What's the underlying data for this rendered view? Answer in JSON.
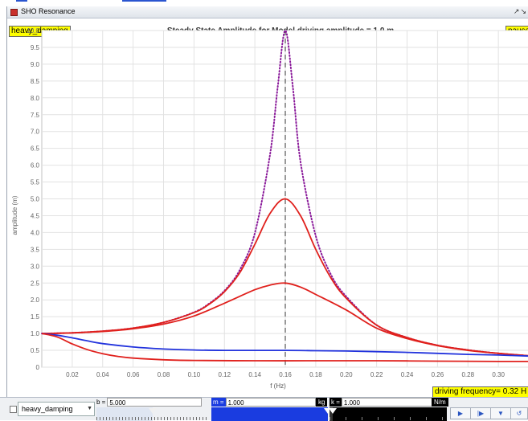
{
  "window": {
    "title": "SHO Resonance",
    "controls": "↗↘"
  },
  "plot": {
    "title": "Steady State Amplitude for Model driving amplitude = 1.0 m",
    "ylabel_tag": "heavy_damping",
    "pause_tag": "pause",
    "driving_frequency": "driving frequency= 0.32 H",
    "xaxis_label": "f (Hz)",
    "yaxis_label": "amplitude (m)"
  },
  "chart_data": {
    "type": "line",
    "title": "Steady State Amplitude for Model driving amplitude = 1.0 m",
    "xlabel": "f (Hz)",
    "ylabel": "amplitude (m)",
    "xlim": [
      0,
      0.32
    ],
    "ylim": [
      0,
      10
    ],
    "grid": true,
    "resonance_frequency": 0.16,
    "x_ticks": [
      "0.02",
      "0.04",
      "0.06",
      "0.08",
      "0.10",
      "0.12",
      "0.14",
      "0.16",
      "0.18",
      "0.20",
      "0.22",
      "0.24",
      "0.26",
      "0.28",
      "0.30"
    ],
    "y_ticks": [
      "0",
      "0.5",
      "1.0",
      "1.5",
      "2.0",
      "2.5",
      "3.0",
      "3.5",
      "4.0",
      "4.5",
      "5.0",
      "5.5",
      "6.0",
      "6.5",
      "7.0",
      "7.5",
      "8.0",
      "8.5",
      "9.0",
      "9.5",
      "10.0"
    ],
    "series": [
      {
        "color": "#8a1a9a",
        "style": "dotted",
        "b": 0.1,
        "x": [
          0.0,
          0.02,
          0.04,
          0.06,
          0.08,
          0.1,
          0.11,
          0.12,
          0.13,
          0.14,
          0.15,
          0.155,
          0.16,
          0.165,
          0.17,
          0.18,
          0.19,
          0.2,
          0.22,
          0.24,
          0.26,
          0.28,
          0.3,
          0.32
        ],
        "y": [
          1.0,
          1.02,
          1.07,
          1.16,
          1.33,
          1.63,
          1.89,
          2.27,
          2.88,
          3.98,
          6.33,
          8.31,
          10.0,
          8.3,
          6.1,
          3.9,
          2.75,
          2.1,
          1.25,
          0.88,
          0.65,
          0.51,
          0.41,
          0.34
        ]
      },
      {
        "color": "#e0201c",
        "style": "solid",
        "b": 0.2,
        "x": [
          0.0,
          0.02,
          0.04,
          0.06,
          0.08,
          0.1,
          0.11,
          0.12,
          0.13,
          0.14,
          0.15,
          0.16,
          0.17,
          0.18,
          0.19,
          0.2,
          0.22,
          0.24,
          0.26,
          0.28,
          0.3,
          0.32
        ],
        "y": [
          1.0,
          1.02,
          1.07,
          1.16,
          1.33,
          1.62,
          1.87,
          2.24,
          2.8,
          3.65,
          4.57,
          5.0,
          4.5,
          3.5,
          2.65,
          2.05,
          1.25,
          0.88,
          0.65,
          0.51,
          0.41,
          0.34
        ]
      },
      {
        "color": "#e0201c",
        "style": "solid",
        "b": 0.4,
        "x": [
          0.0,
          0.02,
          0.04,
          0.06,
          0.08,
          0.1,
          0.12,
          0.14,
          0.15,
          0.16,
          0.17,
          0.18,
          0.2,
          0.22,
          0.24,
          0.26,
          0.28,
          0.3,
          0.32
        ],
        "y": [
          1.0,
          1.02,
          1.06,
          1.14,
          1.28,
          1.52,
          1.9,
          2.3,
          2.44,
          2.5,
          2.38,
          2.16,
          1.7,
          1.16,
          0.85,
          0.64,
          0.5,
          0.41,
          0.34
        ]
      },
      {
        "color": "#2233dd",
        "style": "solid",
        "b": 2.0,
        "x": [
          0.0,
          0.01,
          0.02,
          0.03,
          0.04,
          0.06,
          0.08,
          0.1,
          0.12,
          0.14,
          0.16,
          0.18,
          0.2,
          0.22,
          0.24,
          0.26,
          0.28,
          0.3,
          0.32
        ],
        "y": [
          1.0,
          0.95,
          0.87,
          0.78,
          0.7,
          0.6,
          0.54,
          0.51,
          0.5,
          0.5,
          0.5,
          0.49,
          0.48,
          0.46,
          0.44,
          0.41,
          0.38,
          0.36,
          0.33
        ]
      },
      {
        "color": "#e0201c",
        "style": "solid",
        "b": 5.0,
        "x": [
          0.0,
          0.01,
          0.02,
          0.03,
          0.04,
          0.05,
          0.06,
          0.08,
          0.1,
          0.14,
          0.18,
          0.22,
          0.26,
          0.3,
          0.32
        ],
        "y": [
          1.0,
          0.9,
          0.69,
          0.52,
          0.4,
          0.32,
          0.27,
          0.22,
          0.2,
          0.19,
          0.19,
          0.19,
          0.18,
          0.17,
          0.17
        ]
      }
    ]
  },
  "controls": {
    "selected_model": "heavy_damping",
    "b_label": "b =",
    "b_value": "5.000",
    "b_level": 0.5,
    "m_label": "m =",
    "m_value": "1.000",
    "m_unit": "kg",
    "m_level": 1.0,
    "k_label": "k =",
    "k_value": "1.000",
    "k_unit": "N/m",
    "k_level": 0.03,
    "buttons": [
      "play-icon",
      "step-icon",
      "menu-icon",
      "reset-icon"
    ],
    "button_glyphs": [
      "▶",
      "|▶",
      "▼",
      "↺"
    ]
  }
}
